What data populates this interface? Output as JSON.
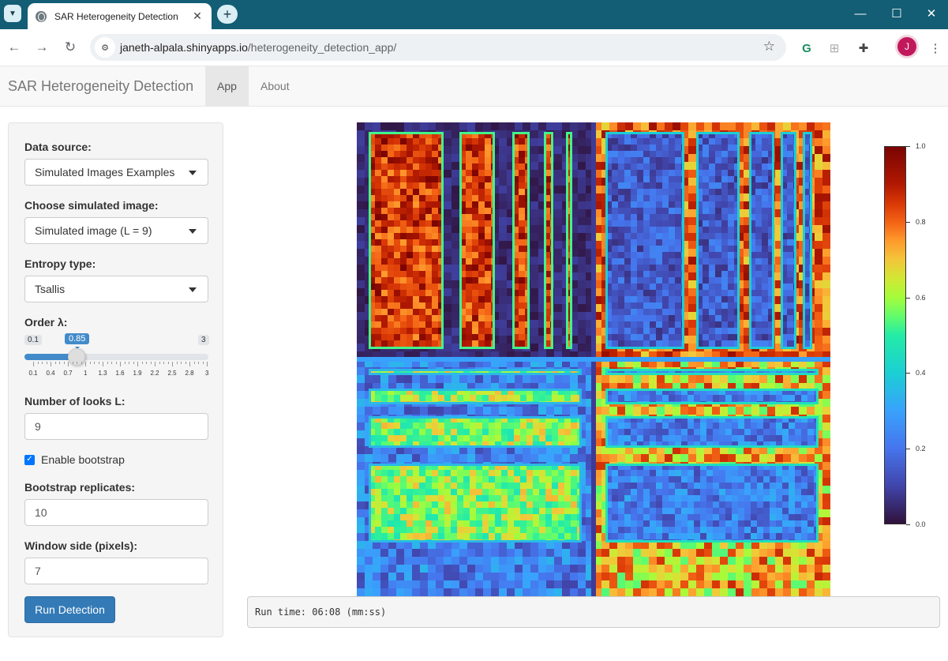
{
  "browser": {
    "tab_title": "SAR Heterogeneity Detection",
    "url_host": "janeth-alpala.shinyapps.io",
    "url_path": "/heterogeneity_detection_app/",
    "profile_initial": "J"
  },
  "navbar": {
    "brand": "SAR Heterogeneity Detection",
    "tabs": [
      {
        "label": "App",
        "active": true
      },
      {
        "label": "About",
        "active": false
      }
    ]
  },
  "sidebar": {
    "data_source": {
      "label": "Data source:",
      "value": "Simulated Images Examples"
    },
    "simulated_image": {
      "label": "Choose simulated image:",
      "value": "Simulated image (L = 9)"
    },
    "entropy_type": {
      "label": "Entropy type:",
      "value": "Tsallis"
    },
    "order": {
      "label": "Order λ:",
      "min": "0.1",
      "max": "3",
      "value": "0.85",
      "value_fraction": 0.259,
      "ticks": [
        "0.1",
        "0.4",
        "0.7",
        "1",
        "1.3",
        "1.6",
        "1.9",
        "2.2",
        "2.5",
        "2.8",
        "3"
      ]
    },
    "looks": {
      "label": "Number of looks L:",
      "value": "9"
    },
    "bootstrap": {
      "label": "Enable bootstrap",
      "checked": true
    },
    "replicates": {
      "label": "Bootstrap replicates:",
      "value": "10"
    },
    "window": {
      "label": "Window side (pixels):",
      "value": "7"
    },
    "run_button": "Run Detection"
  },
  "output": {
    "colorbar_ticks": [
      "1.0",
      "0.8",
      "0.6",
      "0.4",
      "0.2",
      "0.0"
    ],
    "colormap": "turbo",
    "runtime_text": "Run time: 06:08 (mm:ss)"
  }
}
